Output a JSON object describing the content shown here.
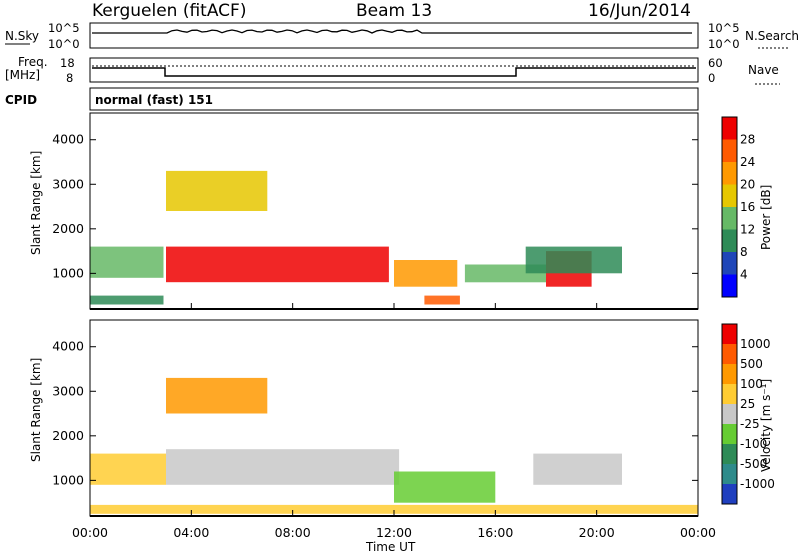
{
  "header": {
    "station": "Kerguelen (fitACF)",
    "beam": "Beam 13",
    "date": "16/Jun/2014"
  },
  "noise_panel": {
    "left_label": "N.Sky",
    "right_label": "N.Search",
    "left_ticks": [
      "10^5",
      "10^0"
    ],
    "right_ticks": [
      "10^5",
      "10^0"
    ]
  },
  "freq_panel": {
    "left_label_1": "Freq.",
    "left_label_2": "[MHz]",
    "left_ticks": [
      "18",
      "8"
    ],
    "right_ticks": [
      "60",
      "0"
    ],
    "right_label": "Nave"
  },
  "cpid": {
    "label": "CPID",
    "value": "normal (fast) 151"
  },
  "chart_data": [
    {
      "type": "heatmap",
      "title": "Power",
      "ylabel": "Slant Range [km]",
      "xlabel": "Time UT",
      "xticks": [
        "00:00",
        "04:00",
        "08:00",
        "12:00",
        "16:00",
        "20:00",
        "00:00"
      ],
      "yticks": [
        "1000",
        "2000",
        "3000",
        "4000"
      ],
      "ylim": [
        200,
        4600
      ],
      "colorbar": {
        "label": "Power [dB]",
        "ticks": [
          "4",
          "8",
          "12",
          "16",
          "20",
          "24",
          "28"
        ],
        "colors": [
          "#0000ff",
          "#1f46b8",
          "#2e8b57",
          "#66b966",
          "#e6c700",
          "#ff9900",
          "#ff5a00",
          "#ee0000"
        ]
      },
      "regions": [
        {
          "t0": 0.0,
          "t1": 2.9,
          "r0": 900,
          "r1": 1600,
          "level": 3
        },
        {
          "t0": 0.0,
          "t1": 2.9,
          "r0": 300,
          "r1": 500,
          "level": 2
        },
        {
          "t0": 3.0,
          "t1": 7.0,
          "r0": 2400,
          "r1": 3300,
          "level": 4
        },
        {
          "t0": 3.0,
          "t1": 11.8,
          "r0": 800,
          "r1": 1600,
          "level": 7
        },
        {
          "t0": 12.0,
          "t1": 14.5,
          "r0": 700,
          "r1": 1300,
          "level": 5
        },
        {
          "t0": 13.2,
          "t1": 14.6,
          "r0": 300,
          "r1": 500,
          "level": 6
        },
        {
          "t0": 14.8,
          "t1": 18.0,
          "r0": 800,
          "r1": 1200,
          "level": 3
        },
        {
          "t0": 18.0,
          "t1": 19.8,
          "r0": 700,
          "r1": 1500,
          "level": 7
        },
        {
          "t0": 17.2,
          "t1": 21.0,
          "r0": 1000,
          "r1": 1600,
          "level": 2
        }
      ]
    },
    {
      "type": "heatmap",
      "title": "Velocity",
      "ylabel": "Slant Range [km]",
      "xlabel": "Time UT",
      "xticks": [
        "00:00",
        "04:00",
        "08:00",
        "12:00",
        "16:00",
        "20:00",
        "00:00"
      ],
      "yticks": [
        "1000",
        "2000",
        "3000",
        "4000"
      ],
      "ylim": [
        200,
        4600
      ],
      "colorbar": {
        "label": "Velocity [m s⁻¹]",
        "ticks": [
          "1000",
          "500",
          "100",
          "25",
          "-25",
          "-100",
          "-500",
          "-1000"
        ],
        "colors": [
          "#1f3fbf",
          "#2e8b8b",
          "#2e8b57",
          "#66cc33",
          "#c8c8c8",
          "#ffcc33",
          "#ff9900",
          "#ff5a00",
          "#ee0000"
        ]
      },
      "regions": [
        {
          "t0": 0.0,
          "t1": 3.0,
          "r0": 900,
          "r1": 1600,
          "level": 5
        },
        {
          "t0": 3.0,
          "t1": 12.2,
          "r0": 900,
          "r1": 1700,
          "level": 4
        },
        {
          "t0": 3.0,
          "t1": 7.0,
          "r0": 2500,
          "r1": 3300,
          "level": 6
        },
        {
          "t0": 12.0,
          "t1": 16.0,
          "r0": 500,
          "r1": 1200,
          "level": 3
        },
        {
          "t0": 17.5,
          "t1": 21.0,
          "r0": 900,
          "r1": 1600,
          "level": 4
        },
        {
          "t0": 0.0,
          "t1": 24.0,
          "r0": 250,
          "r1": 450,
          "level": 5
        }
      ]
    }
  ]
}
